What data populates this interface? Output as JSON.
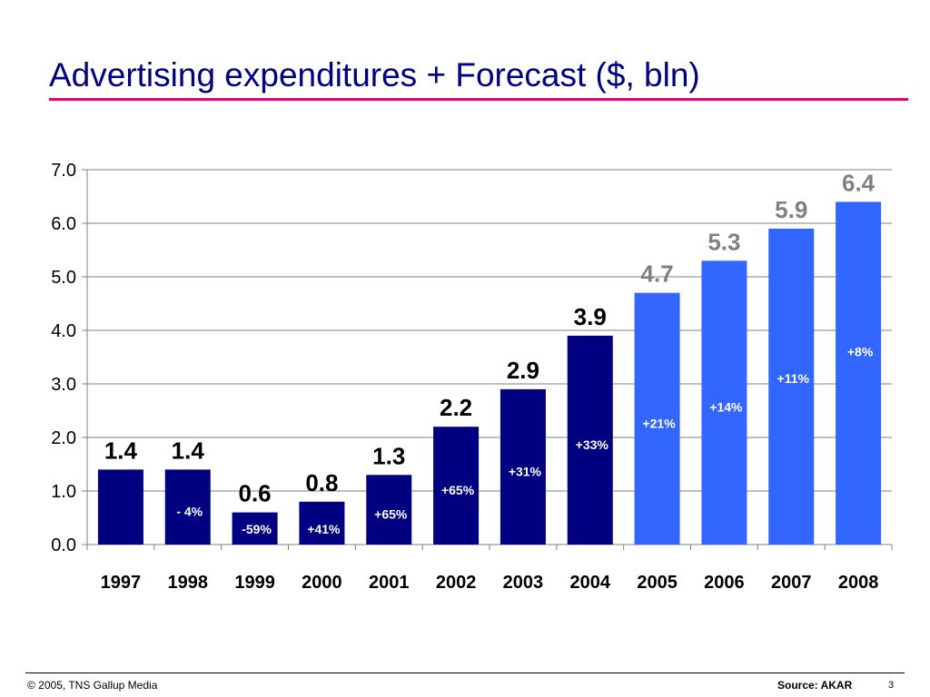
{
  "header": {
    "title": "Advertising expenditures + Forecast ($, bln)"
  },
  "footer": {
    "copyright": "© 2005, TNS Gallup Media",
    "source": "Source: AKAR",
    "page_number": "3"
  },
  "colors": {
    "accent_rule": "#e6007e",
    "bar_actual": "#000080",
    "bar_forecast": "#3366ff",
    "label_actual": "#000000",
    "label_forecast": "#808080",
    "title": "#000080"
  },
  "chart_data": {
    "type": "bar",
    "title": "Advertising expenditures + Forecast ($, bln)",
    "xlabel": "",
    "ylabel": "",
    "ylim": [
      0,
      7
    ],
    "y_ticks": [
      "0.0",
      "1.0",
      "2.0",
      "3.0",
      "4.0",
      "5.0",
      "6.0",
      "7.0"
    ],
    "grid": true,
    "legend": "none",
    "categories": [
      "1997",
      "1998",
      "1999",
      "2000",
      "2001",
      "2002",
      "2003",
      "2004",
      "2005",
      "2006",
      "2007",
      "2008"
    ],
    "values": [
      1.4,
      1.4,
      0.6,
      0.8,
      1.3,
      2.2,
      2.9,
      3.9,
      4.7,
      5.3,
      5.9,
      6.4
    ],
    "value_labels": [
      "1.4",
      "1.4",
      "0.6",
      "0.8",
      "1.3",
      "2.2",
      "2.9",
      "3.9",
      "4.7",
      "5.3",
      "5.9",
      "6.4"
    ],
    "growth_labels": [
      "",
      "- 4%",
      "-59%",
      "+41%",
      "+65%",
      "+65%",
      "+31%",
      "+33%",
      "+21%",
      "+14%",
      "+11%",
      "+8%"
    ],
    "forecast": [
      false,
      false,
      false,
      false,
      false,
      false,
      false,
      false,
      true,
      true,
      true,
      true
    ]
  }
}
